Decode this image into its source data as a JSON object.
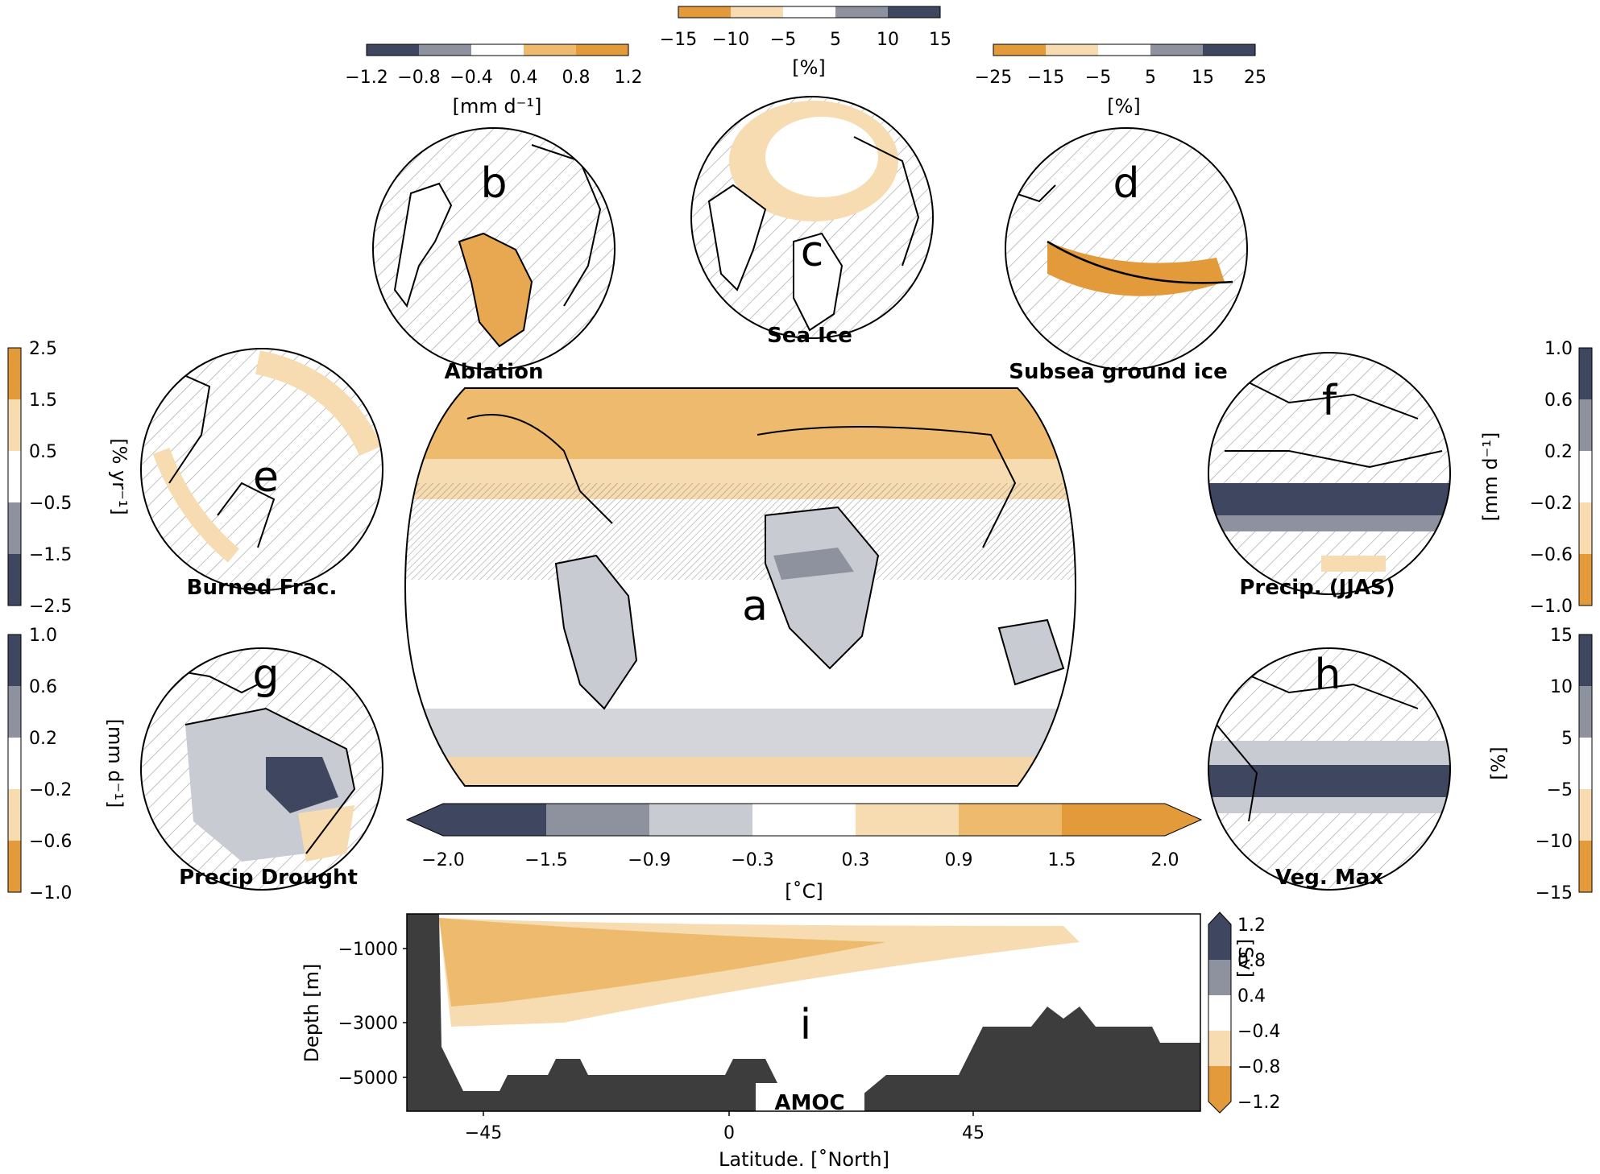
{
  "palette": {
    "orange_dark": "#e39a3a",
    "orange_mid": "#edba6e",
    "orange_light": "#f6dcb0",
    "white": "#ffffff",
    "gray_light": "#c9cbd2",
    "gray_mid": "#8e929f",
    "navy": "#3e4660",
    "land_dark": "#3d3d3d"
  },
  "panels": {
    "a": {
      "letter": "a",
      "label": ""
    },
    "b": {
      "letter": "b",
      "label": "Ablation"
    },
    "c": {
      "letter": "c",
      "label": "Sea Ice"
    },
    "d": {
      "letter": "d",
      "label": "Subsea ground ice"
    },
    "e": {
      "letter": "e",
      "label": "Burned Frac."
    },
    "f": {
      "letter": "f",
      "label": "Precip. (JJAS)"
    },
    "g": {
      "letter": "g",
      "label": "Precip Drought"
    },
    "h": {
      "letter": "h",
      "label": "Veg. Max"
    },
    "i": {
      "letter": "i",
      "label": "AMOC"
    }
  },
  "colorbars": {
    "b": {
      "ticks": [
        "−1.2",
        "−0.8",
        "−0.4",
        "0.4",
        "0.8",
        "1.2"
      ],
      "unit": "[mm d⁻¹]"
    },
    "c": {
      "ticks": [
        "−15",
        "−10",
        "−5",
        "5",
        "10",
        "15"
      ],
      "unit": "[%]"
    },
    "d": {
      "ticks": [
        "−25",
        "−15",
        "−5",
        "5",
        "15",
        "25"
      ],
      "unit": "[%]"
    },
    "e": {
      "ticks": [
        "2.5",
        "1.5",
        "0.5",
        "−0.5",
        "−1.5",
        "−2.5"
      ],
      "unit": "[% yr⁻¹]"
    },
    "f": {
      "ticks": [
        "1.0",
        "0.6",
        "0.2",
        "−0.2",
        "−0.6",
        "−1.0"
      ],
      "unit": "[mm d⁻¹]"
    },
    "g": {
      "ticks": [
        "1.0",
        "0.6",
        "0.2",
        "−0.2",
        "−0.6",
        "−1.0"
      ],
      "unit": "[mm d⁻¹]"
    },
    "h": {
      "ticks": [
        "15",
        "10",
        "5",
        "−5",
        "−10",
        "−15"
      ],
      "unit": "[%]"
    },
    "a": {
      "ticks": [
        "−2.0",
        "−1.5",
        "−0.9",
        "−0.3",
        "0.3",
        "0.9",
        "1.5",
        "2.0"
      ],
      "unit": "[˚C]"
    },
    "i": {
      "ticks": [
        "1.2",
        "0.8",
        "0.4",
        "−0.4",
        "−0.8",
        "−1.2"
      ],
      "unit": "[Sv]"
    }
  },
  "amoc_axes": {
    "xlabel": "Latitude. [˚North]",
    "ylabel": "Depth [m]",
    "xticks": [
      "−45",
      "0",
      "45"
    ],
    "yticks": [
      "−1000",
      "−3000",
      "−5000"
    ]
  }
}
